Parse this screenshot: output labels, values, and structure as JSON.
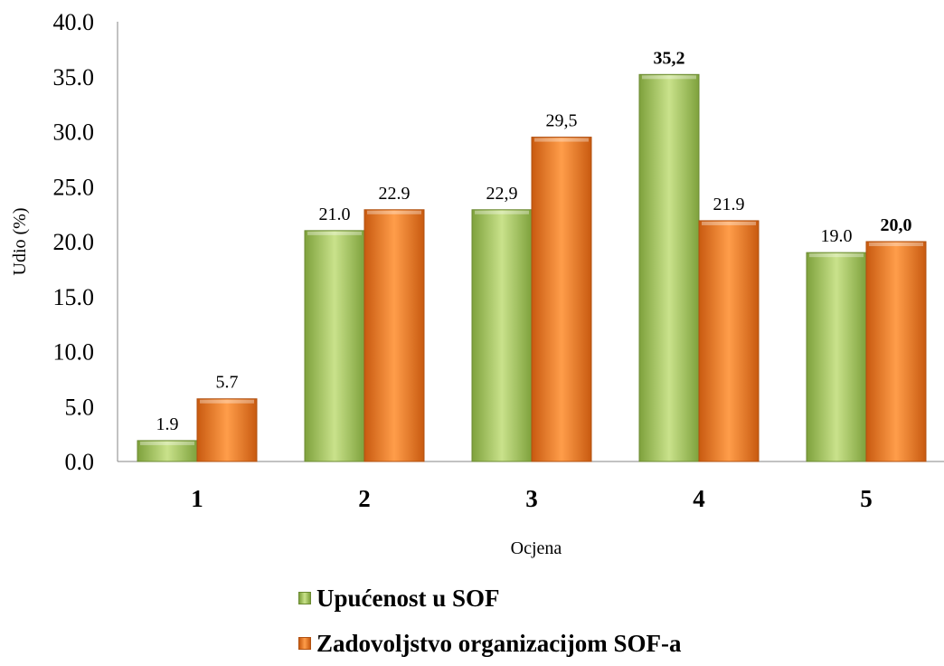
{
  "chart_data": {
    "type": "bar",
    "xlabel": "Ocjena",
    "ylabel": "Udio (%)",
    "ylim": [
      0,
      40
    ],
    "yticks": [
      "0.0",
      "5.0",
      "10.0",
      "15.0",
      "20.0",
      "25.0",
      "30.0",
      "35.0",
      "40.0"
    ],
    "categories": [
      "1",
      "2",
      "3",
      "4",
      "5"
    ],
    "series": [
      {
        "name": "Upućenost u SOF",
        "color": "#9bbb59",
        "values": [
          1.9,
          21.0,
          22.9,
          35.2,
          19.0
        ],
        "labels": [
          "1.9",
          "21.0",
          "22,9",
          "35,2",
          "19.0"
        ],
        "bold_labels": [
          false,
          false,
          false,
          true,
          false
        ]
      },
      {
        "name": "Zadovoljstvo organizacijom SOF-a",
        "color": "#f07818",
        "values": [
          5.7,
          22.9,
          29.5,
          21.9,
          20.0
        ],
        "labels": [
          "5.7",
          "22.9",
          "29,5",
          "21.9",
          "20,0"
        ],
        "bold_labels": [
          false,
          false,
          false,
          false,
          true
        ]
      }
    ],
    "grid": false,
    "legend_position": "bottom"
  },
  "legend": {
    "items": [
      {
        "label": "Upućenost u SOF",
        "swatch": "green"
      },
      {
        "label": "Zadovoljstvo organizacijom SOF-a",
        "swatch": "orange"
      }
    ]
  }
}
